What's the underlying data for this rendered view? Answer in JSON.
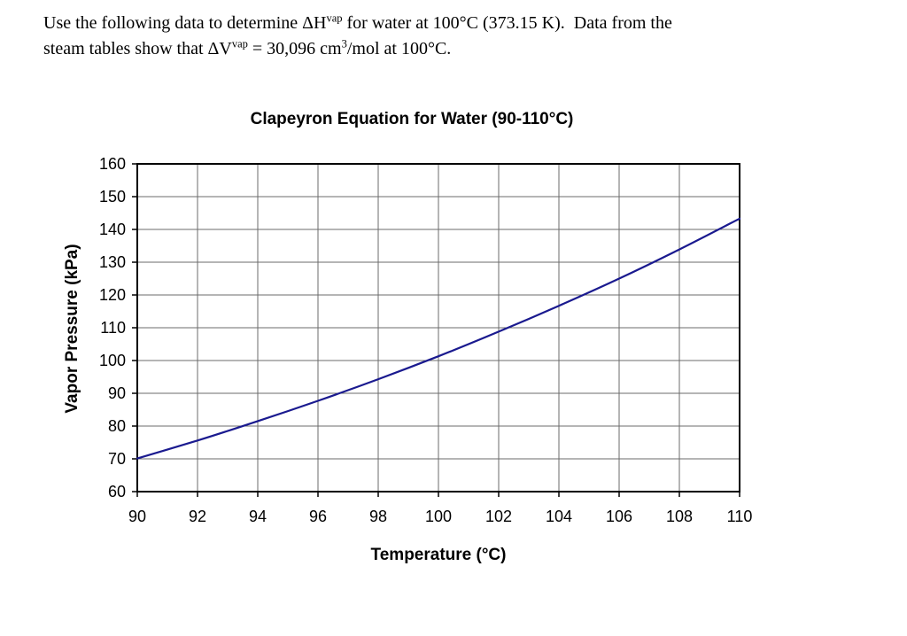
{
  "problem": {
    "line1": {
      "seg1": "Use the following data to determine ΔH",
      "sup1": "vap",
      "seg2": " for water at 100°C (373.15 K).  Data from the"
    },
    "line2": {
      "seg1": "steam tables show that ΔV",
      "sup1": "vap",
      "seg2": " = 30,096 cm",
      "sup2": "3",
      "seg3": "/mol at 100°C."
    }
  },
  "chart_data": {
    "type": "line",
    "title": "Clapeyron Equation for Water (90-110°C)",
    "xlabel": "Temperature (°C)",
    "ylabel": "Vapor Pressure (kPa)",
    "x": [
      90,
      92,
      94,
      96,
      98,
      100,
      102,
      104,
      106,
      108,
      110
    ],
    "y": [
      70.1,
      75.6,
      81.5,
      87.7,
      94.3,
      101.3,
      108.8,
      116.7,
      125.0,
      133.9,
      143.3
    ],
    "xlim": [
      90,
      110
    ],
    "ylim": [
      60,
      160
    ],
    "x_ticks": [
      90,
      92,
      94,
      96,
      98,
      100,
      102,
      104,
      106,
      108,
      110
    ],
    "y_ticks": [
      60,
      70,
      80,
      90,
      100,
      110,
      120,
      130,
      140,
      150,
      160
    ],
    "grid": true,
    "legend": "none",
    "line_color": "#1a1a8f",
    "axis_color": "#000000",
    "gridline_color": "#6b6b6b",
    "tick_label_color": "#000000"
  }
}
